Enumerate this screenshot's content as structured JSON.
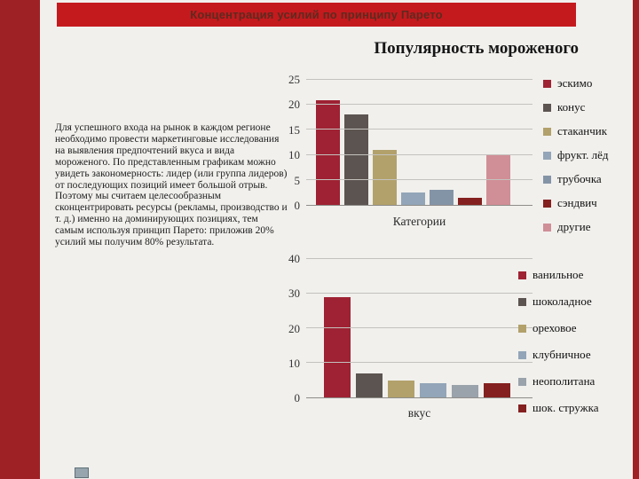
{
  "slide": {
    "banner_title": "Концентрация усилий по принципу Парето",
    "heading": "Популярность мороженого",
    "body_text": "Для успешного входа на рынок в каждом регионе необходимо провести маркетинговые исследования на выявления предпочтений вкуса и вида мороженого. По представленным графикам можно увидеть закономерность: лидер (или группа лидеров) от последующих позиций имеет большой отрыв. Поэтому мы считаем целесообразным сконцентрировать ресурсы (рекламы, производство и т. д.) именно на доминирующих позициях, тем самым используя принцип Парето: приложив 20% усилий мы получим 80% результата."
  },
  "colors": {
    "side_stripe": "#9e2125",
    "banner_background": "#c41a1e",
    "banner_text": "#5e2a1f"
  },
  "chart_data": [
    {
      "type": "bar",
      "title": "Популярность мороженого",
      "xlabel": "Категории",
      "ylabel": "",
      "ylim": [
        0,
        25
      ],
      "yticks": [
        0,
        5,
        10,
        15,
        20,
        25
      ],
      "grid": true,
      "legend_position": "right",
      "categories": [
        "эскимо",
        "конус",
        "стаканчик",
        "фрукт. лёд",
        "трубочка",
        "сэндвич",
        "другие"
      ],
      "values": [
        21,
        18,
        11,
        2.5,
        3,
        1.5,
        10
      ],
      "colors": [
        "#9e2233",
        "#5c5450",
        "#b2a16b",
        "#93a5b8",
        "#8494a7",
        "#84201f",
        "#d08e96"
      ]
    },
    {
      "type": "bar",
      "title": "",
      "xlabel": "вкус",
      "ylabel": "",
      "ylim": [
        0,
        40
      ],
      "yticks": [
        0,
        10,
        20,
        30,
        40
      ],
      "grid": true,
      "legend_position": "right",
      "categories": [
        "ванильное",
        "шоколадное",
        "ореховое",
        "клубничное",
        "неополитана",
        "шок. стружка"
      ],
      "values": [
        29,
        7,
        5,
        4,
        3.5,
        4
      ],
      "colors": [
        "#9e2233",
        "#5c5450",
        "#b2a16b",
        "#93a5b8",
        "#9aa2ab",
        "#84201f"
      ]
    }
  ]
}
